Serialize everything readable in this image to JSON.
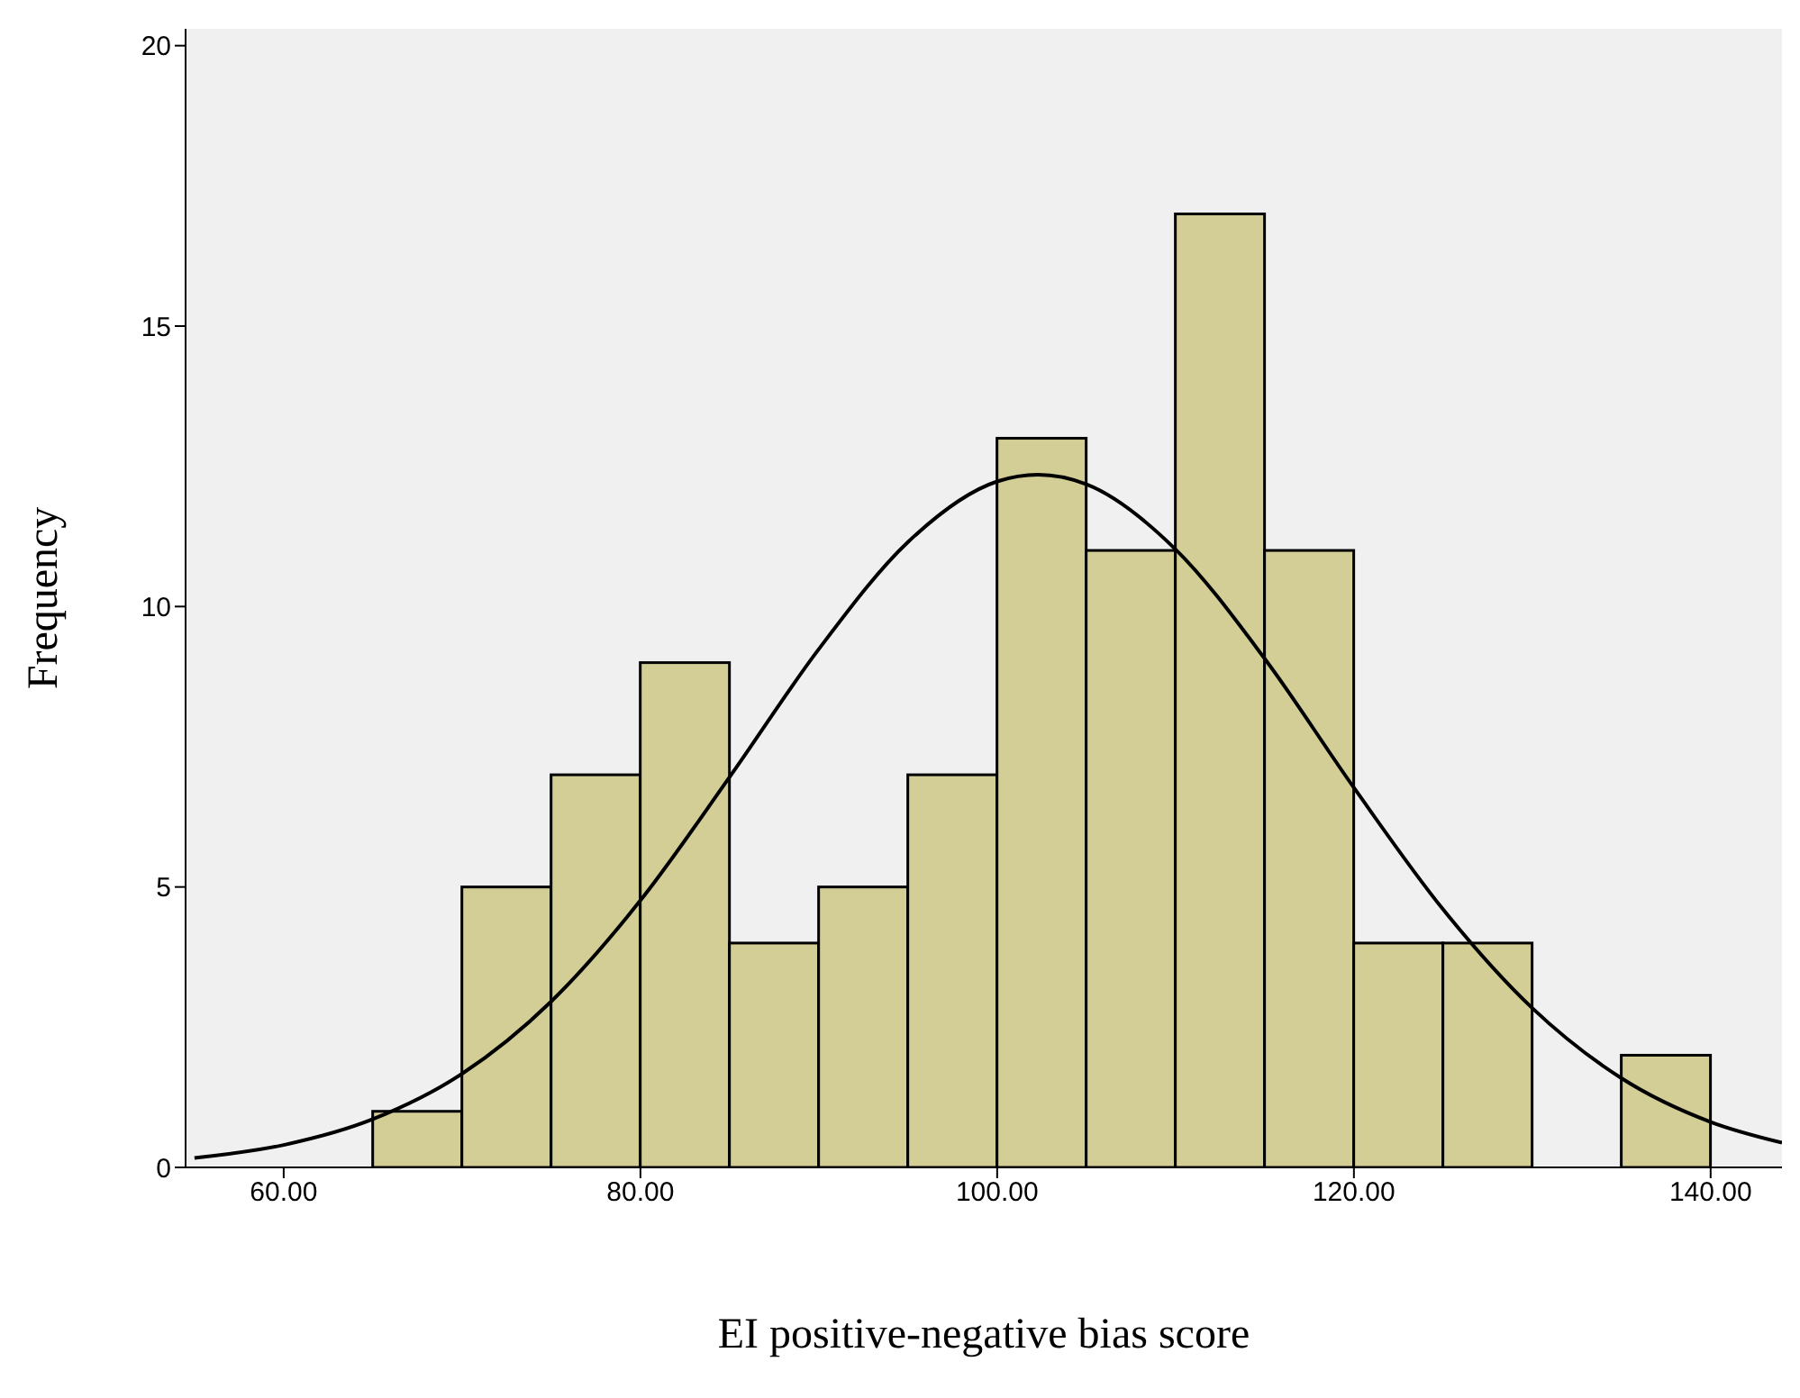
{
  "chart_data": {
    "type": "histogram",
    "xlabel": "EI positive-negative bias score",
    "ylabel": "Frequency",
    "bins": [
      65,
      70,
      75,
      80,
      85,
      90,
      95,
      100,
      105,
      110,
      115,
      120,
      125,
      130,
      135,
      140
    ],
    "values": [
      1,
      5,
      7,
      9,
      4,
      5,
      7,
      13,
      11,
      17,
      11,
      4,
      4,
      0,
      2
    ],
    "color": "#d3cd96",
    "xlim": [
      54.5,
      144
    ],
    "xticks": [
      {
        "value": 60,
        "label": "60.00"
      },
      {
        "value": 80,
        "label": "80.00"
      },
      {
        "value": 100,
        "label": "100.00"
      },
      {
        "value": 120,
        "label": "120.00"
      },
      {
        "value": 140,
        "label": "140.00"
      }
    ],
    "ylim": [
      0,
      20.3
    ],
    "yticks": [
      0,
      5,
      10,
      15,
      20
    ],
    "grid": false,
    "series": [
      {
        "type": "line",
        "color": "#000000",
        "x": [
          55,
          60,
          65,
          70,
          75,
          80,
          85,
          90,
          95,
          100,
          102.3,
          105,
          110,
          115,
          120,
          125,
          130,
          135,
          140,
          144
        ],
        "values": [
          0.17,
          0.4,
          0.86,
          1.67,
          2.96,
          4.76,
          6.96,
          9.24,
          11.15,
          12.23,
          12.35,
          12.18,
          11.02,
          9.07,
          6.77,
          4.6,
          2.84,
          1.59,
          0.81,
          0.44
        ]
      }
    ]
  }
}
